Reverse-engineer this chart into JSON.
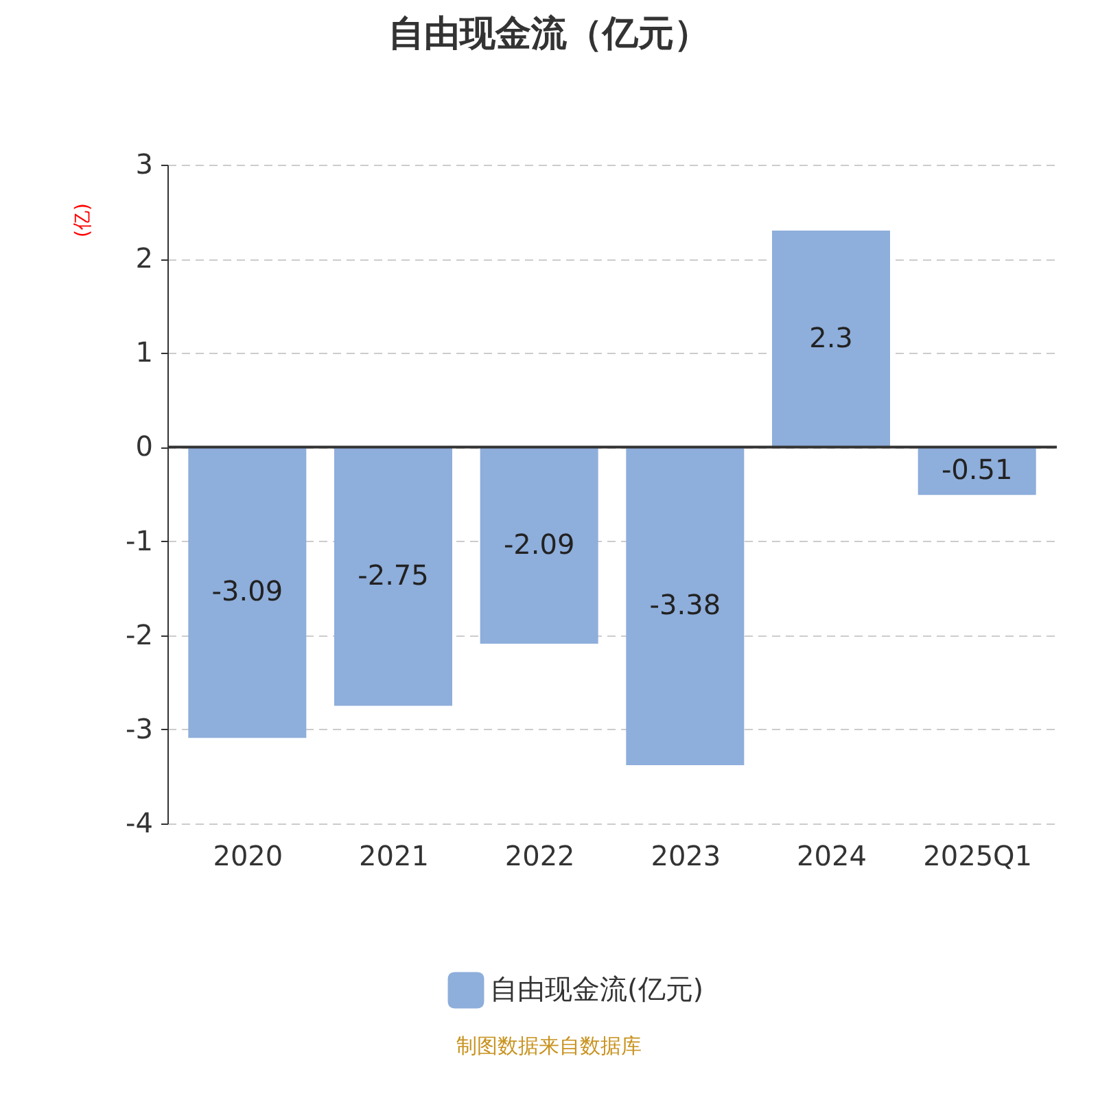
{
  "chart_data": {
    "type": "bar",
    "title": "自由现金流（亿元）",
    "ylabel": "(亿)",
    "categories": [
      "2020",
      "2021",
      "2022",
      "2023",
      "2024",
      "2025Q1"
    ],
    "series": [
      {
        "name": "自由现金流(亿元)",
        "color": "#8eaedb",
        "values": [
          -3.09,
          -2.75,
          -2.09,
          -3.38,
          2.3,
          -0.51
        ]
      }
    ],
    "ylim": [
      -4,
      3
    ],
    "yticks": [
      -4,
      -3,
      -2,
      -1,
      0,
      1,
      2,
      3
    ],
    "grid": "y",
    "legend": "bottom",
    "data_labels": true,
    "annotations": [
      "制图数据来自数据库"
    ]
  }
}
